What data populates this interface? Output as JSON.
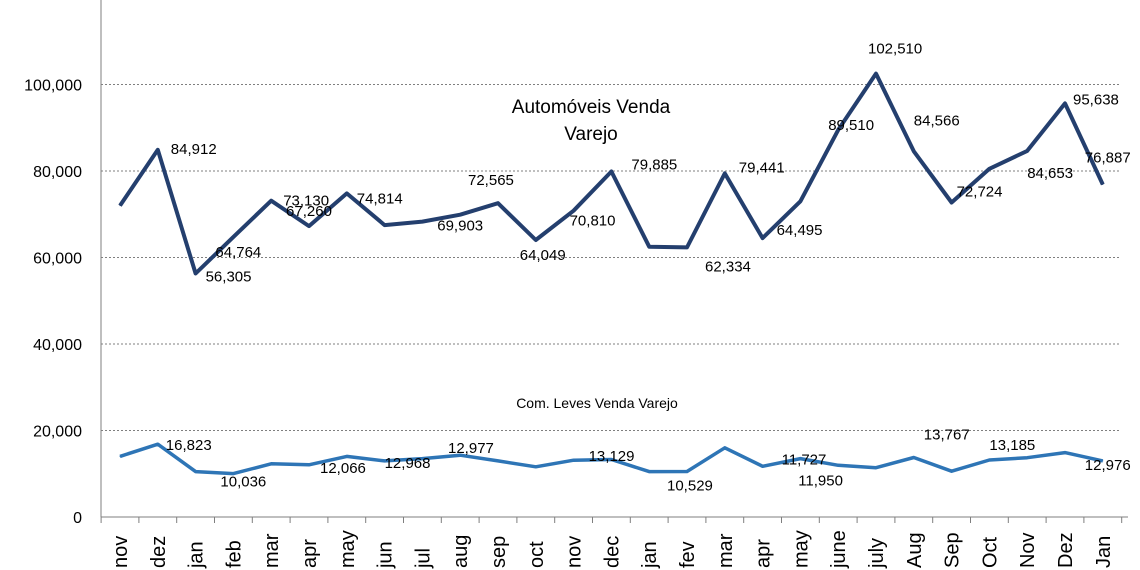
{
  "chart_data": {
    "type": "line",
    "categories": [
      "nov",
      "dez",
      "jan",
      "feb",
      "mar",
      "apr",
      "may",
      "jun",
      "jul",
      "aug",
      "sep",
      "oct",
      "nov",
      "dec",
      "jan",
      "fev",
      "mar",
      "apr",
      "may",
      "june",
      "july",
      "Aug",
      "Sep",
      "Oct",
      "Nov",
      "Dez",
      "Jan"
    ],
    "ylim": [
      0,
      120000
    ],
    "yticks": [
      0,
      20000,
      40000,
      60000,
      80000,
      100000
    ],
    "ytick_labels": [
      "0",
      "20,000",
      "40,000",
      "60,000",
      "80,000",
      "100,000"
    ],
    "grid": "horizontal-dashed",
    "series": [
      {
        "name": "Automóveis Venda Varejo",
        "color": "#243f6e",
        "values": [
          72000,
          84912,
          56305,
          64764,
          73130,
          67260,
          74814,
          67500,
          68300,
          69903,
          72565,
          64049,
          70810,
          79885,
          62500,
          62334,
          79441,
          64495,
          73000,
          89510,
          102510,
          84566,
          72724,
          80500,
          84653,
          95638,
          76887
        ]
      },
      {
        "name": "Com. Leves Venda Varejo",
        "color": "#2e75b6",
        "values": [
          14000,
          16823,
          10500,
          10036,
          12300,
          12066,
          14000,
          12968,
          13500,
          14300,
          12977,
          11600,
          13129,
          13300,
          10500,
          10529,
          16000,
          11727,
          13500,
          11950,
          11400,
          13767,
          10600,
          13185,
          13700,
          14900,
          12976
        ]
      }
    ],
    "data_labels": [
      {
        "series": 0,
        "index": 1,
        "text": "84,912"
      },
      {
        "series": 0,
        "index": 2,
        "text": "56,305"
      },
      {
        "series": 0,
        "index": 3,
        "text": "64,764"
      },
      {
        "series": 0,
        "index": 4,
        "text": "73,130"
      },
      {
        "series": 0,
        "index": 5,
        "text": "67,260"
      },
      {
        "series": 0,
        "index": 6,
        "text": "74,814"
      },
      {
        "series": 0,
        "index": 9,
        "text": "69,903"
      },
      {
        "series": 0,
        "index": 10,
        "text": "72,565"
      },
      {
        "series": 0,
        "index": 11,
        "text": "64,049"
      },
      {
        "series": 0,
        "index": 12,
        "text": "70,810"
      },
      {
        "series": 0,
        "index": 13,
        "text": "79,885"
      },
      {
        "series": 0,
        "index": 15,
        "text": "62,334"
      },
      {
        "series": 0,
        "index": 16,
        "text": "79,441"
      },
      {
        "series": 0,
        "index": 17,
        "text": "64,495"
      },
      {
        "series": 0,
        "index": 19,
        "text": "89,510"
      },
      {
        "series": 0,
        "index": 20,
        "text": "102,510"
      },
      {
        "series": 0,
        "index": 21,
        "text": "84,566"
      },
      {
        "series": 0,
        "index": 22,
        "text": "72,724"
      },
      {
        "series": 0,
        "index": 24,
        "text": "84,653"
      },
      {
        "series": 0,
        "index": 25,
        "text": "95,638"
      },
      {
        "series": 0,
        "index": 26,
        "text": "76,887"
      },
      {
        "series": 1,
        "index": 1,
        "text": "16,823"
      },
      {
        "series": 1,
        "index": 3,
        "text": "10,036"
      },
      {
        "series": 1,
        "index": 5,
        "text": "12,066"
      },
      {
        "series": 1,
        "index": 7,
        "text": "12,968"
      },
      {
        "series": 1,
        "index": 10,
        "text": "12,977"
      },
      {
        "series": 1,
        "index": 12,
        "text": "13,129"
      },
      {
        "series": 1,
        "index": 15,
        "text": "10,529"
      },
      {
        "series": 1,
        "index": 17,
        "text": "11,727"
      },
      {
        "series": 1,
        "index": 19,
        "text": "11,950"
      },
      {
        "series": 1,
        "index": 21,
        "text": "13,767"
      },
      {
        "series": 1,
        "index": 23,
        "text": "13,185"
      },
      {
        "series": 1,
        "index": 26,
        "text": "12,976"
      }
    ],
    "series_titles": [
      {
        "text_lines": [
          "Automóveis Venda",
          "Varejo"
        ]
      },
      {
        "text_lines": [
          "Com. Leves Venda Varejo"
        ]
      }
    ]
  }
}
